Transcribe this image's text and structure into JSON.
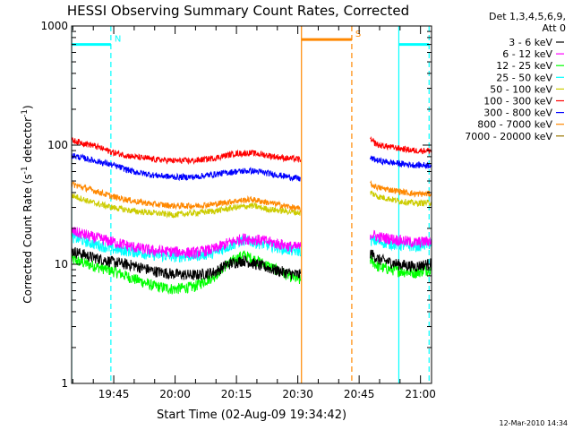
{
  "chart_data": {
    "type": "line",
    "title": "HESSI Observing Summary Count Rates, Corrected",
    "xlabel": "Start Time (02-Aug-09 19:34:42)",
    "ylabel": "Corrected Count Rate (s",
    "ylabel_sup1": "-1",
    "ylabel_mid": " detector",
    "ylabel_sup2": "-1",
    "ylabel_end": ")",
    "footer": "12-Mar-2010 14:34",
    "legend_header": [
      "Det 1,3,4,5,6,9,",
      "Att 0"
    ],
    "x_unit": "minutes after 19:34:42",
    "xlim": [
      0,
      88
    ],
    "yscale": "log",
    "ylim": [
      1,
      1000
    ],
    "x_ticks": [
      {
        "t": 10.3,
        "label": "19:45"
      },
      {
        "t": 25.3,
        "label": "20:00"
      },
      {
        "t": 40.3,
        "label": "20:15"
      },
      {
        "t": 55.3,
        "label": "20:30"
      },
      {
        "t": 70.3,
        "label": "20:45"
      },
      {
        "t": 85.3,
        "label": "21:00"
      }
    ],
    "y_ticks": [
      {
        "v": 1,
        "label": "1"
      },
      {
        "v": 10,
        "label": "10"
      },
      {
        "v": 100,
        "label": "100"
      },
      {
        "v": 1000,
        "label": "1000"
      }
    ],
    "series": [
      {
        "name": "3 - 6 keV",
        "color": "#000000",
        "seg1": [
          [
            0,
            13
          ],
          [
            5,
            11.5
          ],
          [
            10,
            10.5
          ],
          [
            15,
            9.8
          ],
          [
            20,
            8.8
          ],
          [
            25,
            8.3
          ],
          [
            30,
            8.1
          ],
          [
            35,
            8.6
          ],
          [
            38,
            10
          ],
          [
            42,
            10.8
          ],
          [
            46,
            9.8
          ],
          [
            50,
            8.9
          ],
          [
            54,
            8.3
          ],
          [
            56,
            8.2
          ]
        ],
        "seg2": [
          [
            73,
            12.5
          ],
          [
            75,
            11
          ],
          [
            80,
            10
          ],
          [
            84,
            9.6
          ],
          [
            88,
            10.2
          ]
        ]
      },
      {
        "name": "6 - 12 keV",
        "color": "#ff00ff",
        "seg1": [
          [
            0,
            19
          ],
          [
            5,
            17
          ],
          [
            10,
            15.5
          ],
          [
            15,
            14
          ],
          [
            20,
            13
          ],
          [
            25,
            12.8
          ],
          [
            30,
            12.5
          ],
          [
            35,
            13.5
          ],
          [
            38,
            15
          ],
          [
            42,
            16.5
          ],
          [
            46,
            16
          ],
          [
            50,
            15
          ],
          [
            54,
            14
          ],
          [
            56,
            14
          ]
        ],
        "seg2": [
          [
            73,
            18
          ],
          [
            75,
            17
          ],
          [
            80,
            16
          ],
          [
            84,
            15.2
          ],
          [
            88,
            15.8
          ]
        ]
      },
      {
        "name": "12 - 25 keV",
        "color": "#00ff00",
        "seg1": [
          [
            0,
            11
          ],
          [
            5,
            9.8
          ],
          [
            10,
            8.8
          ],
          [
            15,
            7.6
          ],
          [
            20,
            6.6
          ],
          [
            25,
            6.2
          ],
          [
            30,
            6.5
          ],
          [
            35,
            8
          ],
          [
            38,
            10
          ],
          [
            42,
            12
          ],
          [
            46,
            10.5
          ],
          [
            50,
            9
          ],
          [
            54,
            7.8
          ],
          [
            56,
            7.3
          ]
        ],
        "seg2": [
          [
            73,
            11
          ],
          [
            75,
            9.5
          ],
          [
            80,
            8.8
          ],
          [
            84,
            8.5
          ],
          [
            88,
            9.2
          ]
        ]
      },
      {
        "name": "25 - 50 keV",
        "color": "#00ffff",
        "seg1": [
          [
            0,
            17
          ],
          [
            5,
            15
          ],
          [
            10,
            13.5
          ],
          [
            15,
            12.8
          ],
          [
            20,
            12
          ],
          [
            25,
            11.6
          ],
          [
            30,
            11.8
          ],
          [
            35,
            12.5
          ],
          [
            38,
            14
          ],
          [
            42,
            16
          ],
          [
            46,
            15
          ],
          [
            50,
            14
          ],
          [
            54,
            13
          ],
          [
            56,
            13
          ]
        ],
        "seg2": [
          [
            73,
            16
          ],
          [
            75,
            15.5
          ],
          [
            80,
            14.5
          ],
          [
            84,
            14.2
          ],
          [
            88,
            15
          ]
        ]
      },
      {
        "name": "50 - 100 keV",
        "color": "#cccc00",
        "seg1": [
          [
            0,
            38
          ],
          [
            5,
            33
          ],
          [
            10,
            30
          ],
          [
            15,
            28
          ],
          [
            20,
            27
          ],
          [
            25,
            26
          ],
          [
            30,
            27
          ],
          [
            35,
            28
          ],
          [
            40,
            30
          ],
          [
            44,
            31
          ],
          [
            48,
            29
          ],
          [
            52,
            28
          ],
          [
            56,
            27
          ]
        ],
        "seg2": [
          [
            73,
            40
          ],
          [
            75,
            37
          ],
          [
            80,
            34
          ],
          [
            84,
            32.5
          ],
          [
            88,
            33
          ]
        ]
      },
      {
        "name": "100 - 300 keV",
        "color": "#ff0000",
        "seg1": [
          [
            0,
            110
          ],
          [
            5,
            100
          ],
          [
            10,
            87
          ],
          [
            15,
            80
          ],
          [
            20,
            76
          ],
          [
            25,
            74
          ],
          [
            30,
            74
          ],
          [
            35,
            78
          ],
          [
            40,
            85
          ],
          [
            44,
            86
          ],
          [
            48,
            82
          ],
          [
            52,
            78
          ],
          [
            56,
            76
          ]
        ],
        "seg2": [
          [
            73,
            110
          ],
          [
            75,
            100
          ],
          [
            80,
            94
          ],
          [
            84,
            90
          ],
          [
            88,
            90
          ]
        ]
      },
      {
        "name": "300 - 800 keV",
        "color": "#0000ff",
        "seg1": [
          [
            0,
            82
          ],
          [
            5,
            75
          ],
          [
            10,
            68
          ],
          [
            15,
            60
          ],
          [
            20,
            56
          ],
          [
            25,
            54
          ],
          [
            30,
            54
          ],
          [
            35,
            57
          ],
          [
            40,
            60
          ],
          [
            44,
            61
          ],
          [
            48,
            58
          ],
          [
            52,
            55
          ],
          [
            56,
            52
          ]
        ],
        "seg2": [
          [
            73,
            78
          ],
          [
            75,
            74
          ],
          [
            80,
            70
          ],
          [
            84,
            68
          ],
          [
            88,
            68
          ]
        ]
      },
      {
        "name": "800 - 7000 keV",
        "color": "#ff8800",
        "seg1": [
          [
            0,
            47
          ],
          [
            5,
            42
          ],
          [
            10,
            37
          ],
          [
            15,
            34
          ],
          [
            20,
            32
          ],
          [
            25,
            31
          ],
          [
            30,
            31
          ],
          [
            35,
            32
          ],
          [
            40,
            34
          ],
          [
            44,
            35
          ],
          [
            48,
            33
          ],
          [
            52,
            31
          ],
          [
            56,
            29
          ]
        ],
        "seg2": [
          [
            73,
            47
          ],
          [
            75,
            44
          ],
          [
            80,
            41
          ],
          [
            84,
            39
          ],
          [
            88,
            39
          ]
        ]
      },
      {
        "name": "7000 - 20000 keV",
        "color": "#997700",
        "seg1": [],
        "seg2": []
      }
    ],
    "vertical_lines": [
      {
        "t": 0,
        "color": "#00ffff",
        "style": "solid"
      },
      {
        "t": 9.6,
        "color": "#00ffff",
        "style": "dashed"
      },
      {
        "t": 56.2,
        "color": "#ff8800",
        "style": "solid"
      },
      {
        "t": 68.5,
        "color": "#ff8800",
        "style": "dashed"
      },
      {
        "t": 80.0,
        "color": "#00ffff",
        "style": "solid"
      },
      {
        "t": 87.4,
        "color": "#00ffff",
        "style": "dashed"
      }
    ],
    "flag_bars": [
      {
        "label": "N",
        "t0": 0,
        "t1": 9.6,
        "y": 700,
        "color": "#00ffff"
      },
      {
        "label": "S",
        "t0": 56.2,
        "t1": 68.5,
        "y": 770,
        "color": "#ff8800"
      },
      {
        "label": "",
        "t0": 80.0,
        "t1": 87.4,
        "y": 700,
        "color": "#00ffff"
      }
    ]
  }
}
